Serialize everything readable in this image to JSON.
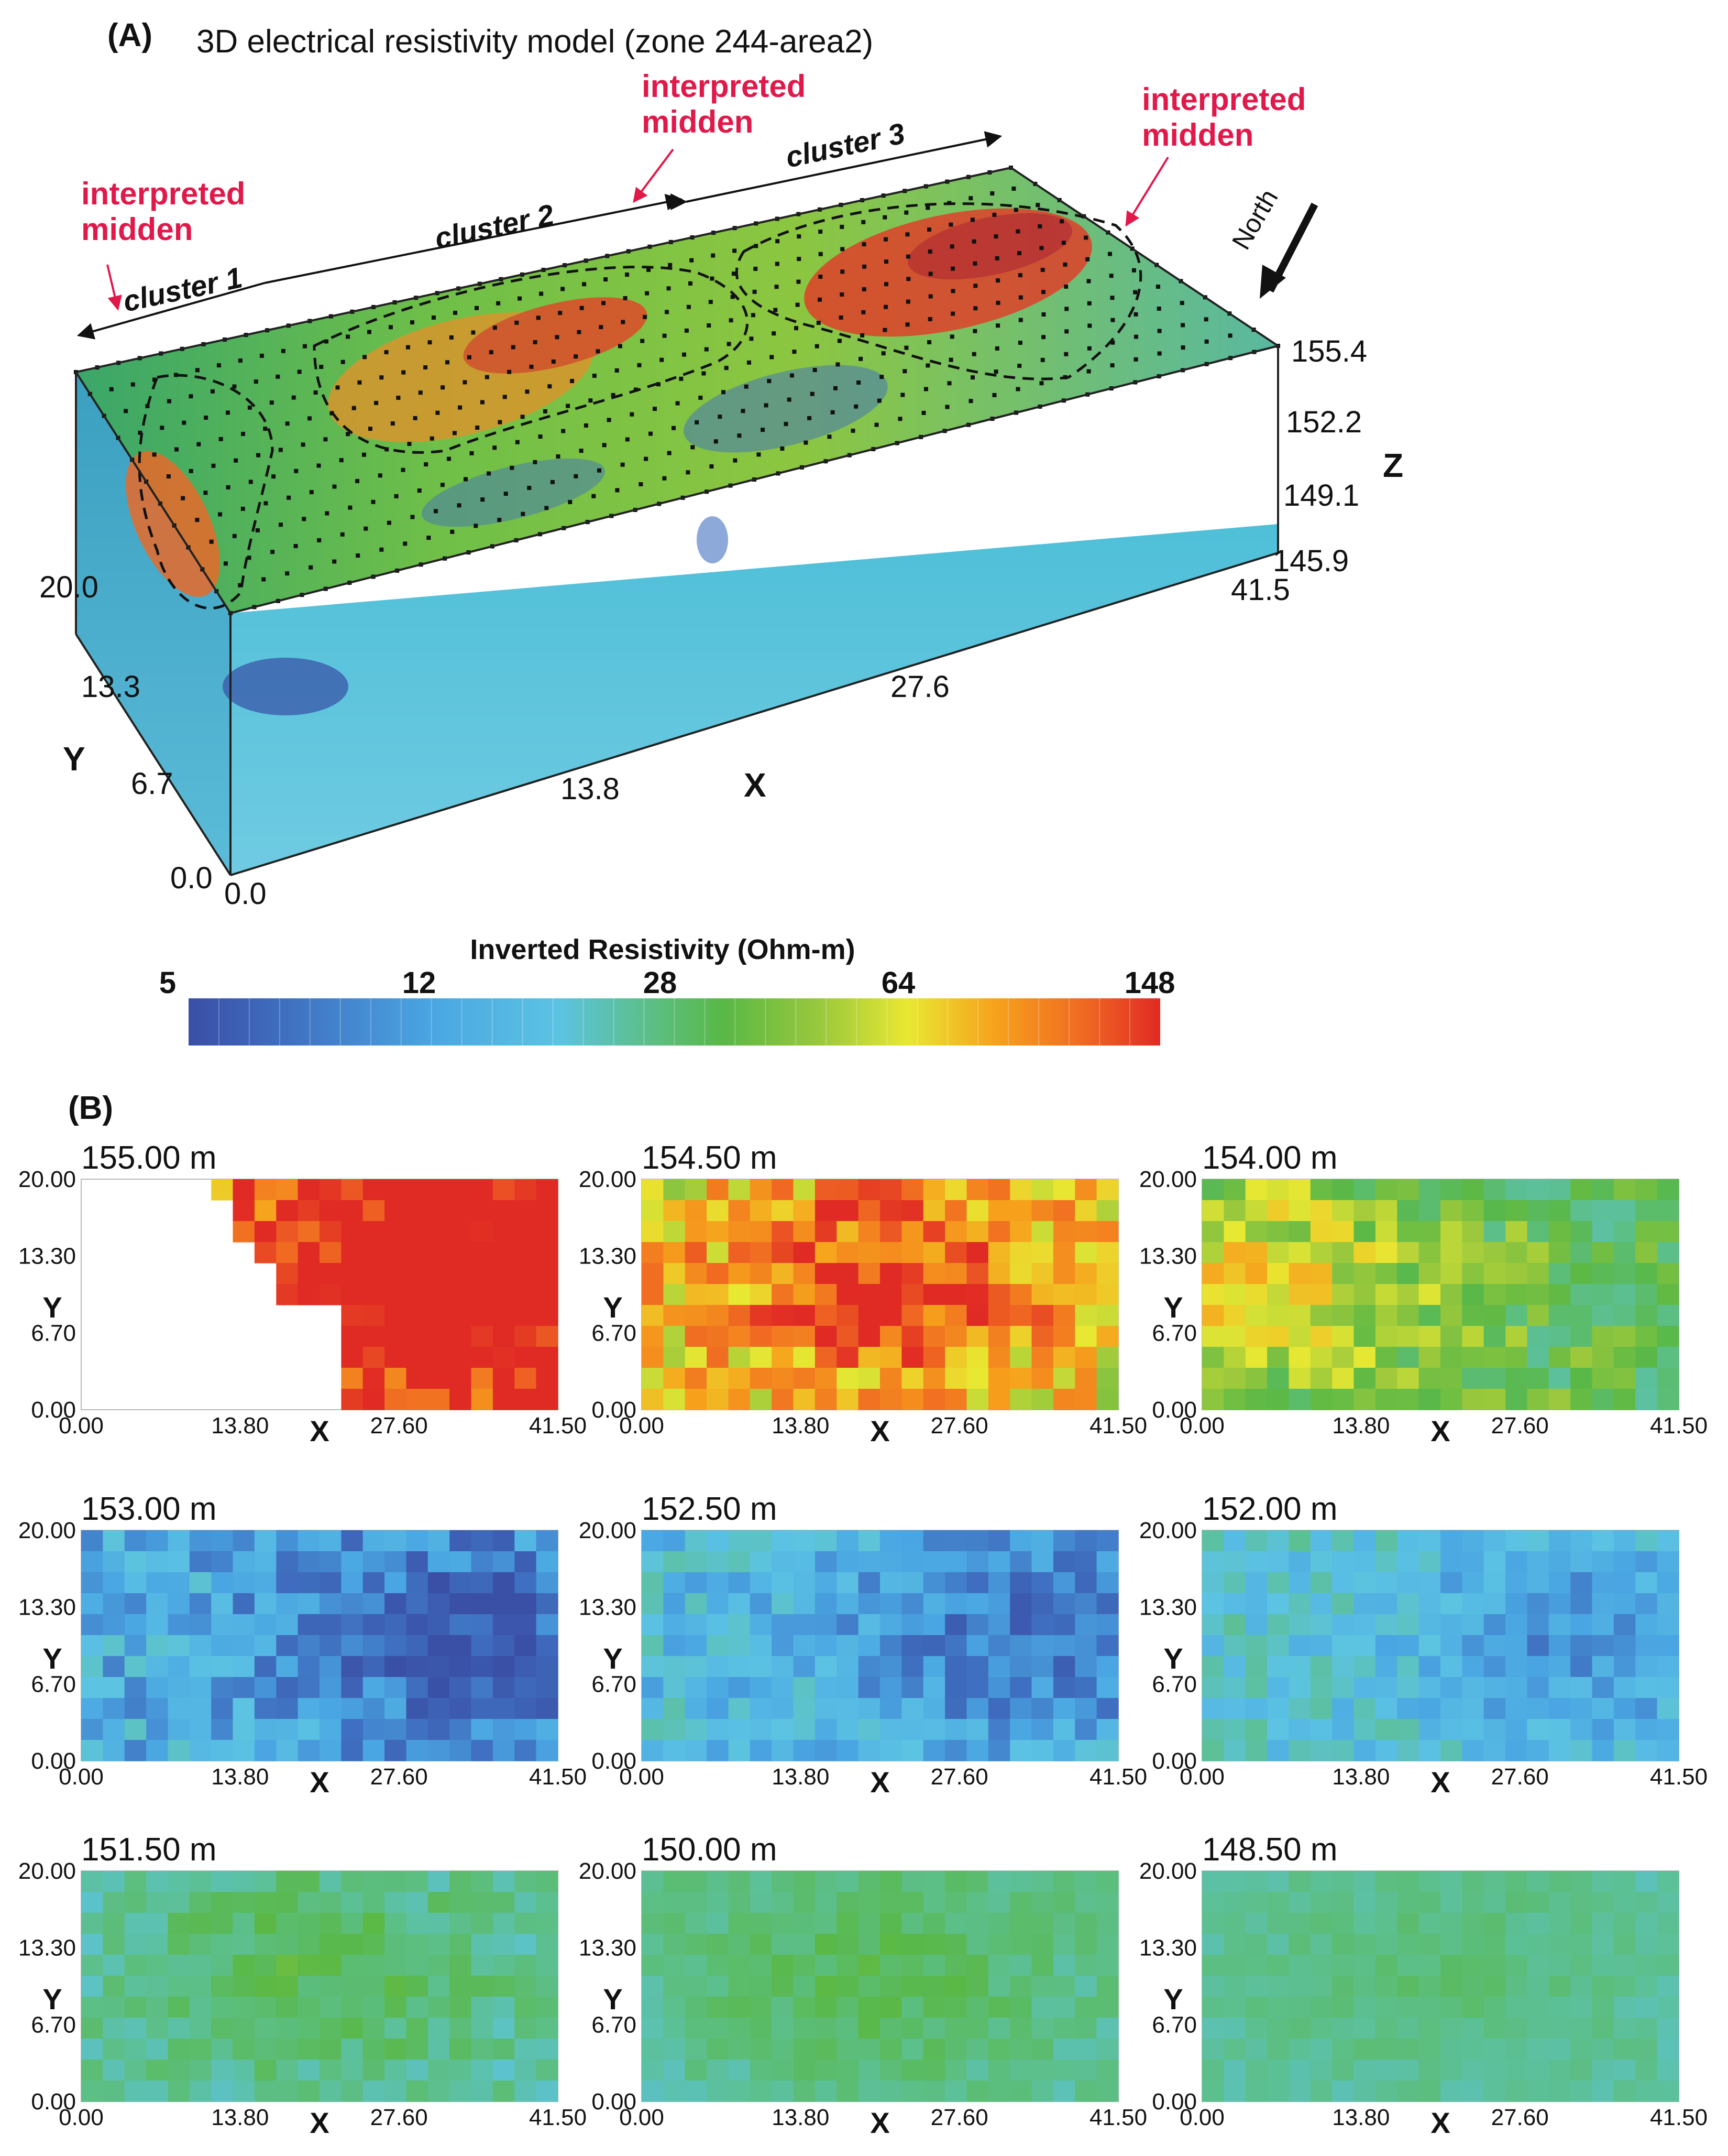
{
  "panel_a": {
    "label": "(A)",
    "title": "3D electrical resistivity model (zone 244-area2)",
    "annotations": [
      {
        "line1": "interpreted",
        "line2": "midden"
      },
      {
        "line1": "interpreted",
        "line2": "midden"
      },
      {
        "line1": "interpreted",
        "line2": "midden"
      }
    ],
    "clusters": [
      "cluster 1",
      "cluster 2",
      "cluster 3"
    ],
    "north_label": "North",
    "z_axis": {
      "label": "Z",
      "ticks": [
        "155.4",
        "152.2",
        "149.1",
        "145.9"
      ]
    },
    "y_axis": {
      "label": "Y",
      "ticks": [
        "20.0",
        "13.3",
        "6.7",
        "0.0"
      ]
    },
    "x_axis": {
      "label": "X",
      "ticks": [
        "0.0",
        "13.8",
        "27.6",
        "41.5"
      ]
    }
  },
  "colorbar": {
    "title": "Inverted Resistivity (Ohm-m)",
    "ticks": [
      "5",
      "12",
      "28",
      "64",
      "148"
    ],
    "colors": [
      "#3a4fa6",
      "#3f6fc0",
      "#4aa6e2",
      "#5cc3e3",
      "#5cbf8a",
      "#59b846",
      "#9ac83c",
      "#e8e832",
      "#f6a21c",
      "#f06a22",
      "#e02a24"
    ]
  },
  "panel_b": {
    "label": "(B)",
    "x_axis_label": "X",
    "y_axis_label": "Y",
    "x_ticks": [
      "0.00",
      "13.80",
      "27.60",
      "41.50"
    ],
    "y_ticks": [
      "20.00",
      "13.30",
      "6.70",
      "0.00"
    ]
  },
  "chart_data": [
    {
      "type": "heatmap",
      "title": "3D electrical resistivity model (zone 244-area2)",
      "description_units": "Ohm-m",
      "xlabel": "X",
      "ylabel": "Y",
      "zlabel": "Z",
      "xlim": [
        0.0,
        41.5
      ],
      "ylim": [
        0.0,
        20.0
      ],
      "zlim": [
        145.9,
        155.4
      ],
      "colorbar": {
        "label": "Inverted Resistivity (Ohm-m)",
        "ticks": [
          5,
          12,
          28,
          64,
          148
        ]
      }
    },
    {
      "type": "heatmap",
      "title": "155.00 m",
      "xlabel": "X",
      "ylabel": "Y",
      "xlim": [
        0.0,
        41.5
      ],
      "ylim": [
        0.0,
        20.0
      ],
      "relative_resistivity": 0.88,
      "hotspot": "east",
      "spread": 0.55,
      "partial_coverage": true
    },
    {
      "type": "heatmap",
      "title": "154.50 m",
      "xlabel": "X",
      "ylabel": "Y",
      "xlim": [
        0.0,
        41.5
      ],
      "ylim": [
        0.0,
        20.0
      ],
      "relative_resistivity": 0.68,
      "hotspot": "center",
      "spread": 0.5,
      "partial_coverage": false
    },
    {
      "type": "heatmap",
      "title": "154.00 m",
      "xlabel": "X",
      "ylabel": "Y",
      "xlim": [
        0.0,
        41.5
      ],
      "ylim": [
        0.0,
        20.0
      ],
      "relative_resistivity": 0.48,
      "hotspot": "west",
      "spread": 0.4,
      "partial_coverage": false
    },
    {
      "type": "heatmap",
      "title": "153.00 m",
      "xlabel": "X",
      "ylabel": "Y",
      "xlim": [
        0.0,
        41.5
      ],
      "ylim": [
        0.0,
        20.0
      ],
      "relative_resistivity": 0.24,
      "hotspot": "east",
      "spread": 0.35,
      "partial_coverage": false
    },
    {
      "type": "heatmap",
      "title": "152.50 m",
      "xlabel": "X",
      "ylabel": "Y",
      "xlim": [
        0.0,
        41.5
      ],
      "ylim": [
        0.0,
        20.0
      ],
      "relative_resistivity": 0.28,
      "hotspot": "east",
      "spread": 0.3,
      "partial_coverage": false
    },
    {
      "type": "heatmap",
      "title": "152.00 m",
      "xlabel": "X",
      "ylabel": "Y",
      "xlim": [
        0.0,
        41.5
      ],
      "ylim": [
        0.0,
        20.0
      ],
      "relative_resistivity": 0.32,
      "hotspot": "east",
      "spread": 0.25,
      "partial_coverage": false
    },
    {
      "type": "heatmap",
      "title": "151.50 m",
      "xlabel": "X",
      "ylabel": "Y",
      "xlim": [
        0.0,
        41.5
      ],
      "ylim": [
        0.0,
        20.0
      ],
      "relative_resistivity": 0.36,
      "hotspot": "center",
      "spread": 0.2,
      "partial_coverage": false
    },
    {
      "type": "heatmap",
      "title": "150.00 m",
      "xlabel": "X",
      "ylabel": "Y",
      "xlim": [
        0.0,
        41.5
      ],
      "ylim": [
        0.0,
        20.0
      ],
      "relative_resistivity": 0.38,
      "hotspot": "center",
      "spread": 0.15,
      "partial_coverage": false
    },
    {
      "type": "heatmap",
      "title": "148.50 m",
      "xlabel": "X",
      "ylabel": "Y",
      "xlim": [
        0.0,
        41.5
      ],
      "ylim": [
        0.0,
        20.0
      ],
      "relative_resistivity": 0.37,
      "hotspot": "center",
      "spread": 0.1,
      "partial_coverage": false
    }
  ]
}
